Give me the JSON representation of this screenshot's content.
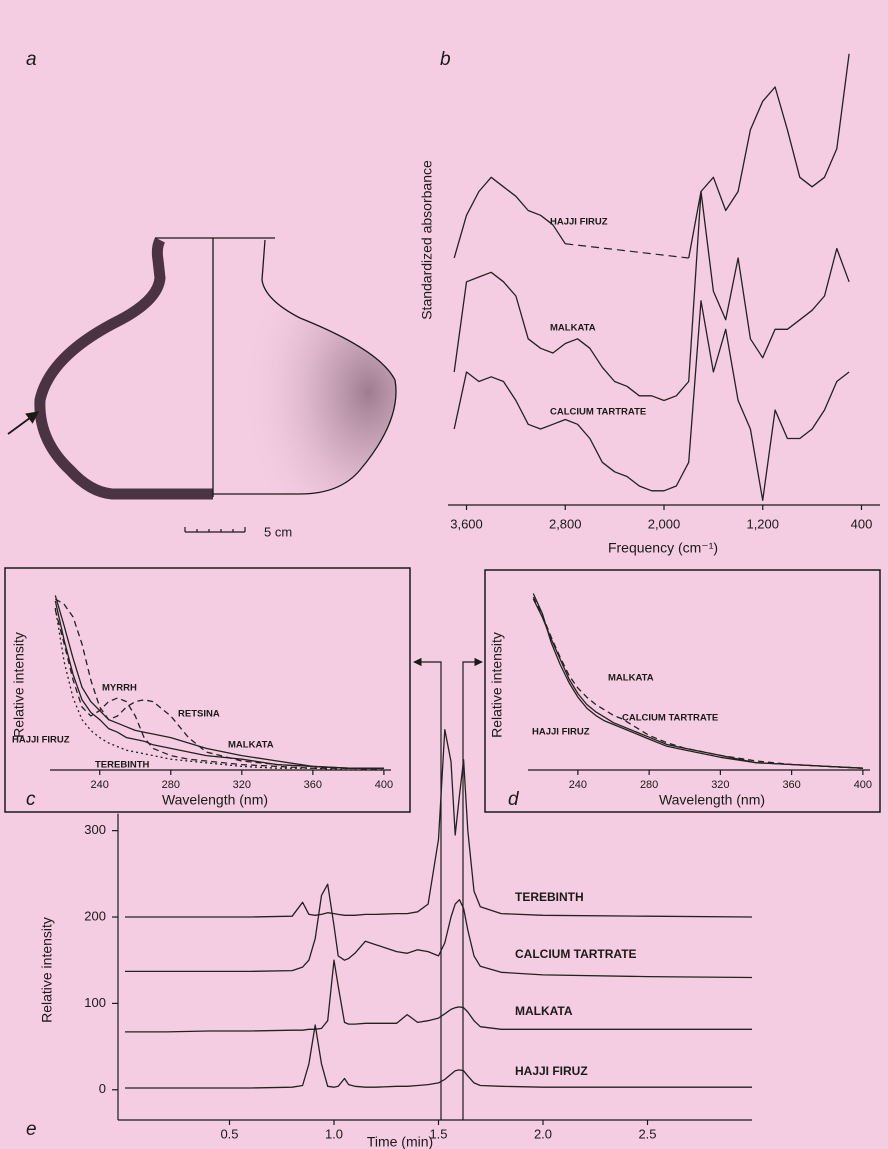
{
  "drawing": {
    "panel_label": "a",
    "scale_label": "5 cm"
  },
  "chart_data": [
    {
      "type": "line",
      "panel_label": "b",
      "x_label": "Frequency (cm⁻¹)",
      "y_label": "Standardized absorbance",
      "xlim": [
        3750,
        250
      ],
      "ylim": [
        0,
        100
      ],
      "xticks": [
        {
          "value": 3600,
          "label": "3,600"
        },
        {
          "value": 2800,
          "label": "2,800"
        },
        {
          "value": 2000,
          "label": "2,000"
        },
        {
          "value": 1200,
          "label": "1,200"
        },
        400
      ],
      "x": [
        3700,
        3600,
        3500,
        3400,
        3300,
        3200,
        3100,
        3000,
        2900,
        2800,
        2700,
        2600,
        2500,
        2400,
        2300,
        2200,
        2100,
        2000,
        1900,
        1800,
        1700,
        1600,
        1500,
        1400,
        1300,
        1200,
        1100,
        1000,
        900,
        800,
        700,
        600,
        500
      ],
      "series": [
        {
          "name": "HAJJI FIRUZ",
          "color": "#222222",
          "line_style": "solid",
          "values": [
            52,
            61,
            66,
            69,
            67,
            65,
            62,
            61,
            59,
            55,
            null,
            null,
            null,
            null,
            null,
            null,
            null,
            null,
            null,
            52,
            66,
            69,
            62,
            66,
            79,
            85,
            88,
            79,
            69,
            67,
            69,
            75,
            95
          ]
        },
        {
          "name": "MALKATA",
          "color": "#222222",
          "line_style": "solid",
          "values": [
            28,
            47,
            48,
            49,
            47,
            44,
            35,
            33,
            32,
            34,
            35,
            33,
            29,
            26,
            25,
            23,
            23,
            22,
            23,
            26,
            66,
            45,
            39,
            52,
            35,
            31,
            37,
            37,
            39,
            41,
            44,
            54,
            47
          ]
        },
        {
          "name": "CALCIUM TARTRATE",
          "color": "#222222",
          "line_style": "solid",
          "values": [
            16,
            28,
            26,
            27,
            26,
            22,
            17,
            16,
            17,
            18,
            17,
            14,
            9,
            7,
            6,
            4,
            3,
            3,
            4,
            9,
            43,
            28,
            37,
            22,
            16,
            1,
            20,
            14,
            14,
            16,
            20,
            26,
            28
          ]
        }
      ]
    },
    {
      "type": "line",
      "panel_label": "c",
      "x_label": "Wavelength (nm)",
      "y_label": "Relative intensity",
      "xlim": [
        212,
        404
      ],
      "ylim": [
        0,
        100
      ],
      "xticks": [
        240,
        280,
        320,
        360,
        400
      ],
      "x": [
        215,
        220,
        225,
        230,
        235,
        240,
        245,
        250,
        255,
        260,
        265,
        270,
        280,
        290,
        300,
        320,
        340,
        360,
        380,
        400
      ],
      "series": [
        {
          "name": "MYRRH",
          "color": "#222222",
          "line_style": "dashed",
          "values": [
            89,
            70,
            50,
            35,
            30,
            33,
            38,
            40,
            38,
            30,
            18,
            12,
            8,
            6,
            5,
            3,
            2,
            1,
            1,
            0
          ]
        },
        {
          "name": "RETSINA",
          "color": "#222222",
          "line_style": "dashed",
          "values": [
            95,
            92,
            85,
            70,
            50,
            35,
            28,
            30,
            35,
            38,
            39,
            38,
            30,
            18,
            10,
            5,
            3,
            2,
            1,
            1
          ]
        },
        {
          "name": "HAJJI FIRUZ",
          "color": "#222222",
          "line_style": "solid",
          "values": [
            94,
            72,
            53,
            39,
            32,
            28,
            23,
            21,
            18,
            17,
            16,
            14,
            12,
            10,
            8,
            6,
            3,
            2,
            1,
            1
          ]
        },
        {
          "name": "MALKATA",
          "color": "#222222",
          "line_style": "solid",
          "values": [
            97,
            80,
            62,
            46,
            38,
            33,
            28,
            26,
            24,
            22,
            21,
            20,
            18,
            15,
            12,
            8,
            5,
            2,
            1,
            1
          ]
        },
        {
          "name": "TEREBINTH",
          "color": "#222222",
          "line_style": "dotted",
          "values": [
            90,
            60,
            40,
            28,
            22,
            18,
            15,
            13,
            11,
            10,
            9,
            8,
            6,
            5,
            4,
            2,
            1,
            1,
            0,
            0
          ]
        }
      ]
    },
    {
      "type": "line",
      "panel_label": "d",
      "x_label": "Wavelength (nm)",
      "y_label": "Relative intensity",
      "xlim": [
        212,
        404
      ],
      "ylim": [
        0,
        100
      ],
      "xticks": [
        240,
        280,
        320,
        360,
        400
      ],
      "x": [
        215,
        220,
        225,
        230,
        235,
        240,
        245,
        250,
        255,
        260,
        265,
        270,
        280,
        290,
        300,
        320,
        340,
        360,
        380,
        400
      ],
      "series": [
        {
          "name": "MALKATA",
          "color": "#222222",
          "line_style": "solid",
          "values": [
            94,
            84,
            72,
            61,
            50,
            42,
            36,
            32,
            29,
            26,
            24,
            22,
            18,
            14,
            12,
            8,
            4,
            3,
            2,
            1
          ]
        },
        {
          "name": "CALCIUM TARTRATE",
          "color": "#222222",
          "line_style": "dashed",
          "values": [
            95,
            85,
            73,
            62,
            52,
            45,
            40,
            36,
            33,
            30,
            28,
            25,
            19,
            15,
            12,
            8,
            5,
            3,
            2,
            1
          ]
        },
        {
          "name": "HAJJI FIRUZ",
          "color": "#222222",
          "line_style": "solid",
          "values": [
            97,
            86,
            70,
            58,
            48,
            40,
            34,
            30,
            27,
            25,
            23,
            21,
            17,
            13,
            11,
            7,
            4,
            3,
            2,
            1
          ]
        }
      ]
    },
    {
      "type": "line",
      "panel_label": "e",
      "x_label": "Time (min)",
      "y_label": "Relative intensity",
      "xlim": [
        0,
        3
      ],
      "ylim": [
        -35,
        420
      ],
      "xticks": [
        0.5,
        {
          "value": 1,
          "label": "1.0"
        },
        1.5,
        {
          "value": 2,
          "label": "2.0"
        },
        2.5
      ],
      "yticks": [
        0,
        100,
        200,
        300
      ],
      "x": [
        0,
        0.2,
        0.4,
        0.6,
        0.8,
        0.85,
        0.88,
        0.91,
        0.94,
        0.97,
        1.0,
        1.02,
        1.05,
        1.07,
        1.1,
        1.15,
        1.2,
        1.3,
        1.35,
        1.4,
        1.45,
        1.5,
        1.53,
        1.56,
        1.58,
        1.6,
        1.62,
        1.64,
        1.67,
        1.7,
        1.8,
        2.0,
        2.5,
        3.0
      ],
      "series": [
        {
          "name": "TEREBINTH",
          "color": "#222222",
          "line_style": "solid",
          "values": [
            200,
            200,
            200,
            200,
            201,
            217,
            203,
            202,
            203,
            205,
            204,
            203,
            202,
            202,
            202,
            203,
            203,
            204,
            204,
            206,
            215,
            290,
            417,
            380,
            295,
            340,
            382,
            300,
            230,
            212,
            204,
            202,
            201,
            200
          ]
        },
        {
          "name": "CALCIUM TARTRATE",
          "color": "#222222",
          "line_style": "solid",
          "values": [
            137,
            137,
            137,
            137,
            138,
            142,
            150,
            175,
            225,
            238,
            190,
            155,
            150,
            152,
            158,
            172,
            168,
            160,
            158,
            162,
            160,
            155,
            170,
            200,
            215,
            220,
            210,
            185,
            155,
            143,
            136,
            133,
            131,
            130
          ]
        },
        {
          "name": "MALKATA",
          "color": "#222222",
          "line_style": "solid",
          "values": [
            67,
            67,
            68,
            68,
            69,
            69,
            70,
            70,
            71,
            80,
            150,
            120,
            78,
            76,
            76,
            77,
            77,
            77,
            87,
            78,
            80,
            83,
            88,
            93,
            95,
            96,
            95,
            90,
            80,
            73,
            70,
            70,
            70,
            70
          ]
        },
        {
          "name": "HAJJI FIRUZ",
          "color": "#222222",
          "line_style": "solid",
          "values": [
            2,
            2,
            2,
            2,
            3,
            5,
            30,
            75,
            30,
            4,
            3,
            4,
            13,
            6,
            4,
            3,
            3,
            4,
            4,
            5,
            6,
            8,
            12,
            18,
            22,
            23,
            22,
            16,
            8,
            5,
            4,
            3,
            3,
            3
          ]
        }
      ]
    }
  ]
}
